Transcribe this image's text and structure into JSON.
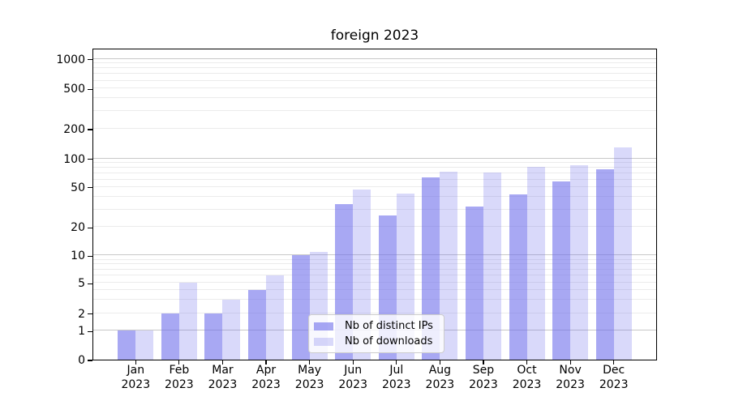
{
  "chart_data": {
    "type": "bar",
    "title": "foreign 2023",
    "y_scale": "symlog",
    "grid": true,
    "categories": [
      "Jan",
      "Feb",
      "Mar",
      "Apr",
      "May",
      "Jun",
      "Jul",
      "Aug",
      "Sep",
      "Oct",
      "Nov",
      "Dec"
    ],
    "category_year": "2023",
    "series": [
      {
        "name": "Nb of distinct IPs",
        "color": "rgba(110,110,235,0.6)",
        "values": [
          1,
          2,
          2,
          4,
          10,
          34,
          26,
          63,
          32,
          42,
          57,
          77
        ]
      },
      {
        "name": "Nb of downloads",
        "color": "rgba(110,110,235,0.26)",
        "values": [
          1,
          5,
          3,
          6,
          11,
          47,
          43,
          73,
          71,
          81,
          85,
          130
        ]
      }
    ],
    "y_ticks": [
      1000,
      500,
      200,
      100,
      50,
      20,
      10,
      5,
      2,
      1,
      0
    ],
    "major_gridlines": [
      1,
      10,
      100,
      1000
    ],
    "minor_gridlines": [
      2,
      3,
      4,
      5,
      6,
      7,
      8,
      9,
      20,
      30,
      40,
      50,
      60,
      70,
      80,
      90,
      200,
      300,
      400,
      500,
      600,
      700,
      800,
      900
    ],
    "ylim": [
      0,
      1250
    ],
    "legend_position": "lower center-right"
  }
}
